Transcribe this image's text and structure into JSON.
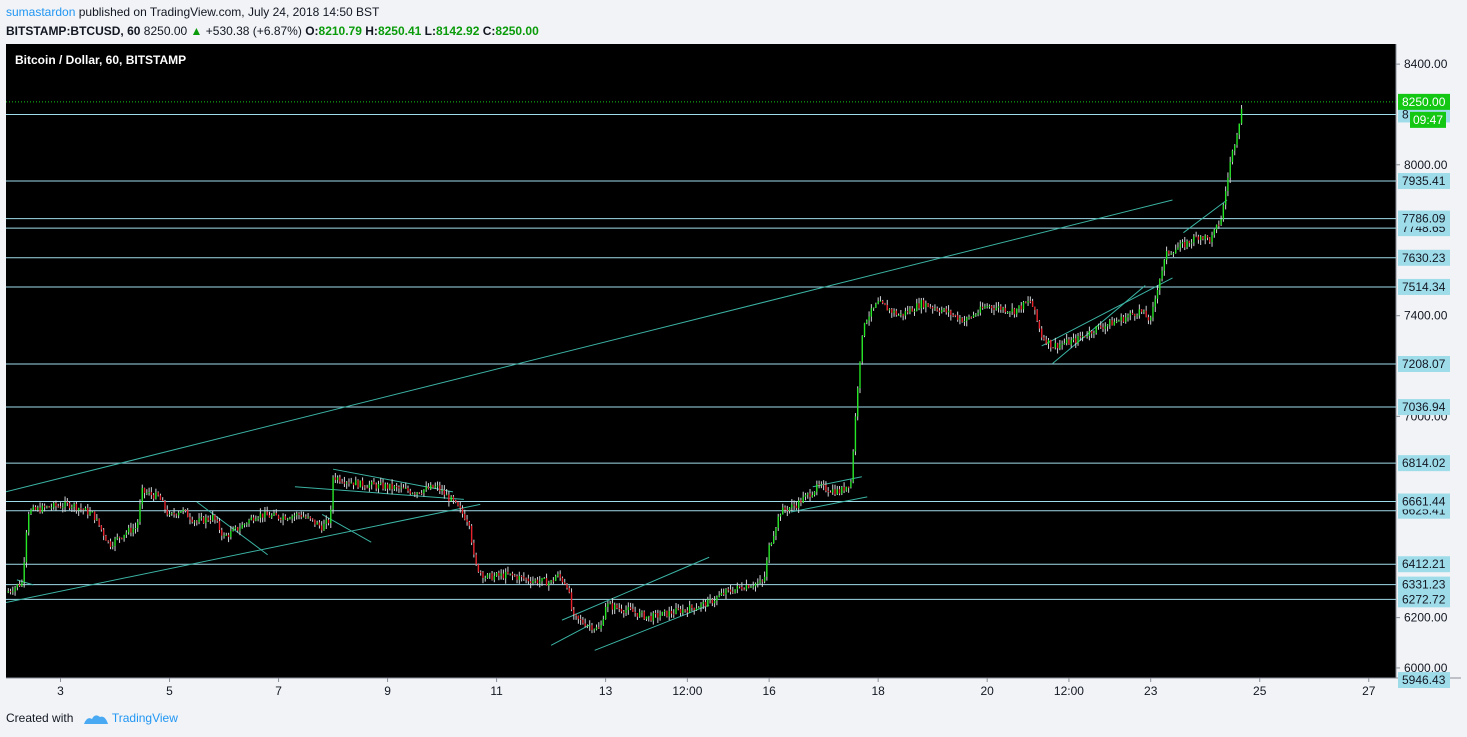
{
  "header": {
    "author": "sumastardon",
    "published_text": "published on TradingView.com, July 24, 2018 14:50 BST",
    "symbol": "BITSTAMP:BTCUSD, 60",
    "last": "8250.00",
    "change": "+530.38 (+6.87%)",
    "o_label": "O:",
    "o_value": "8210.79",
    "h_label": "H:",
    "h_value": "8250.41",
    "l_label": "L:",
    "l_value": "8142.92",
    "c_label": "C:",
    "c_value": "8250.00"
  },
  "footer": {
    "created_with": "Created with",
    "brand": "TradingView"
  },
  "colors": {
    "background": "#000000",
    "up_candle": "#23e823",
    "down_candle": "#e8212a",
    "level_line": "#9fdcea",
    "trend_line": "#3bb3a3",
    "price_line": "#13c713",
    "axis_bg": "#f1f3f6"
  },
  "chart_data": {
    "type": "candlestick",
    "title": "Bitcoin / Dollar, 60, BITSTAMP",
    "yaxis_ticks": [
      "8400.00",
      "8000.00",
      "7400.00",
      "7000.00",
      "6200.00",
      "6000.00"
    ],
    "xaxis_ticks": [
      "3",
      "5",
      "7",
      "9",
      "11",
      "13",
      "12:00",
      "16",
      "18",
      "20",
      "12:00",
      "23",
      "25",
      "27"
    ],
    "horizontal_levels": [
      "7935.41",
      "7786.09",
      "7630.23",
      "7514.34",
      "7208.07",
      "7036.94",
      "6814.02",
      "6661.44",
      "6412.21",
      "6331.23",
      "6272.72"
    ],
    "partial_level_labels": [
      "8",
      "7748.65",
      "6625.41",
      "5946.43"
    ],
    "current_price": "8250.00",
    "countdown": "09:47",
    "close_path": [
      [
        2.0,
        6300
      ],
      [
        2.3,
        6340
      ],
      [
        2.4,
        6620
      ],
      [
        2.8,
        6640
      ],
      [
        3.2,
        6650
      ],
      [
        3.6,
        6610
      ],
      [
        3.9,
        6490
      ],
      [
        4.2,
        6540
      ],
      [
        4.4,
        6560
      ],
      [
        4.5,
        6700
      ],
      [
        4.8,
        6680
      ],
      [
        5.0,
        6600
      ],
      [
        5.2,
        6630
      ],
      [
        5.5,
        6580
      ],
      [
        5.8,
        6600
      ],
      [
        6.0,
        6520
      ],
      [
        6.3,
        6560
      ],
      [
        6.6,
        6610
      ],
      [
        7.0,
        6600
      ],
      [
        7.4,
        6610
      ],
      [
        7.8,
        6560
      ],
      [
        7.95,
        6590
      ],
      [
        8.0,
        6760
      ],
      [
        8.5,
        6730
      ],
      [
        9.0,
        6720
      ],
      [
        9.5,
        6700
      ],
      [
        9.9,
        6720
      ],
      [
        10.2,
        6660
      ],
      [
        10.5,
        6580
      ],
      [
        10.6,
        6410
      ],
      [
        10.8,
        6360
      ],
      [
        11.2,
        6370
      ],
      [
        11.6,
        6350
      ],
      [
        12.0,
        6340
      ],
      [
        12.1,
        6370
      ],
      [
        12.3,
        6330
      ],
      [
        12.4,
        6200
      ],
      [
        12.7,
        6170
      ],
      [
        12.9,
        6150
      ],
      [
        13.0,
        6250
      ],
      [
        13.4,
        6230
      ],
      [
        13.8,
        6200
      ],
      [
        14.2,
        6220
      ],
      [
        14.6,
        6240
      ],
      [
        14.9,
        6260
      ],
      [
        15.2,
        6300
      ],
      [
        15.6,
        6330
      ],
      [
        15.9,
        6340
      ],
      [
        16.0,
        6480
      ],
      [
        16.2,
        6620
      ],
      [
        16.5,
        6650
      ],
      [
        16.9,
        6720
      ],
      [
        17.3,
        6700
      ],
      [
        17.5,
        6740
      ],
      [
        17.65,
        7200
      ],
      [
        17.75,
        7380
      ],
      [
        18.0,
        7450
      ],
      [
        18.4,
        7400
      ],
      [
        18.8,
        7450
      ],
      [
        19.2,
        7420
      ],
      [
        19.6,
        7380
      ],
      [
        20.0,
        7440
      ],
      [
        20.5,
        7420
      ],
      [
        20.8,
        7460
      ],
      [
        21.0,
        7320
      ],
      [
        21.2,
        7280
      ],
      [
        21.6,
        7300
      ],
      [
        22.0,
        7350
      ],
      [
        22.4,
        7380
      ],
      [
        22.8,
        7420
      ],
      [
        23.0,
        7380
      ],
      [
        23.15,
        7540
      ],
      [
        23.3,
        7650
      ],
      [
        23.6,
        7680
      ],
      [
        23.9,
        7720
      ],
      [
        24.1,
        7700
      ],
      [
        24.3,
        7790
      ],
      [
        24.45,
        8000
      ],
      [
        24.6,
        8150
      ],
      [
        24.7,
        8250
      ]
    ],
    "trend_lines": [
      [
        [
          2.0,
          6700
        ],
        [
          23.4,
          7860
        ]
      ],
      [
        [
          2.0,
          6260
        ],
        [
          10.7,
          6650
        ]
      ],
      [
        [
          2.2,
          6350
        ],
        [
          2.5,
          6330
        ]
      ],
      [
        [
          5.5,
          6660
        ],
        [
          6.8,
          6450
        ]
      ],
      [
        [
          7.8,
          6610
        ],
        [
          8.7,
          6500
        ]
      ],
      [
        [
          8.0,
          6790
        ],
        [
          10.2,
          6700
        ]
      ],
      [
        [
          7.3,
          6720
        ],
        [
          10.4,
          6670
        ]
      ],
      [
        [
          12.2,
          6190
        ],
        [
          14.9,
          6440
        ]
      ],
      [
        [
          12.8,
          6070
        ],
        [
          14.9,
          6250
        ]
      ],
      [
        [
          12.0,
          6090
        ],
        [
          12.7,
          6170
        ]
      ],
      [
        [
          16.8,
          6720
        ],
        [
          17.7,
          6760
        ]
      ],
      [
        [
          16.4,
          6620
        ],
        [
          17.8,
          6680
        ]
      ],
      [
        [
          21.2,
          7210
        ],
        [
          22.9,
          7520
        ]
      ],
      [
        [
          21.0,
          7280
        ],
        [
          23.4,
          7550
        ]
      ],
      [
        [
          23.6,
          7730
        ],
        [
          24.4,
          7860
        ]
      ]
    ]
  }
}
